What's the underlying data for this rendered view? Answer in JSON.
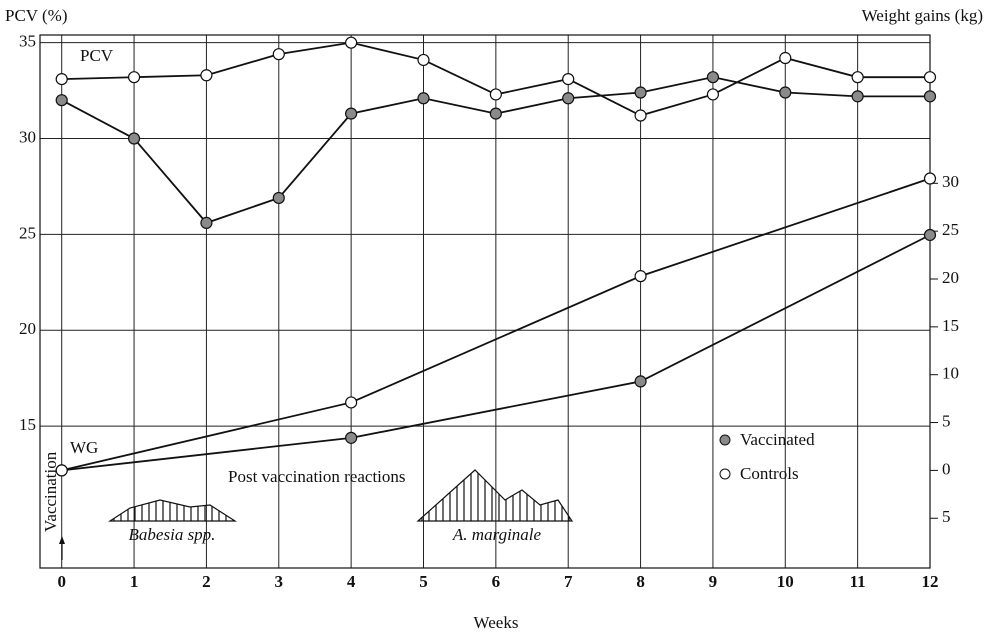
{
  "chart_data": {
    "type": "line",
    "y_label": "PCV (%)",
    "y2_label": "Weight gains (kg)",
    "x_label": "Weeks",
    "xlim": [
      -0.3,
      12
    ],
    "xticks": [
      0,
      1,
      2,
      3,
      4,
      5,
      6,
      7,
      8,
      9,
      10,
      11,
      12
    ],
    "ylim": [
      7.6,
      35.4
    ],
    "yticks": [
      15,
      20,
      25,
      30,
      35
    ],
    "y2lim": [
      -10.2,
      45.5
    ],
    "y2ticks": [
      30,
      25,
      20,
      15,
      10,
      5,
      0,
      {
        "value": -5,
        "label": "5"
      }
    ],
    "grid": true,
    "annotations": [
      "PCV",
      "WG",
      "Vaccination",
      "Post vaccination reactions",
      "Babesia spp.",
      "A. marginale"
    ],
    "series": [
      {
        "name": "Vaccinated",
        "color": "#111111",
        "marker_fill": "#8a8a8a",
        "axis": "y",
        "x": [
          0,
          1,
          2,
          3,
          4,
          5,
          6,
          7,
          8,
          9,
          10,
          11,
          12
        ],
        "values": [
          32,
          30,
          25.6,
          26.9,
          31.3,
          32.1,
          31.3,
          32.1,
          32.4,
          33.2,
          32.4,
          32.2,
          32.2
        ]
      },
      {
        "name": "Controls",
        "color": "#111111",
        "marker_fill": "#ffffff",
        "axis": "y",
        "x": [
          0,
          1,
          2,
          3,
          4,
          5,
          6,
          7,
          8,
          9,
          10,
          11,
          12
        ],
        "values": [
          33.1,
          33.2,
          33.3,
          34.4,
          35.0,
          34.1,
          32.3,
          33.1,
          31.2,
          32.3,
          34.2,
          33.2,
          33.2
        ]
      },
      {
        "name": "Vaccinated",
        "color": "#111111",
        "marker_fill": "#8a8a8a",
        "axis": "y2",
        "x": [
          0,
          4,
          8,
          12
        ],
        "values": [
          0,
          3.4,
          9.3,
          24.6
        ]
      },
      {
        "name": "Controls",
        "color": "#111111",
        "marker_fill": "#ffffff",
        "axis": "y2",
        "x": [
          0,
          4,
          8,
          12
        ],
        "values": [
          0,
          7.1,
          20.3,
          30.5
        ]
      }
    ]
  }
}
